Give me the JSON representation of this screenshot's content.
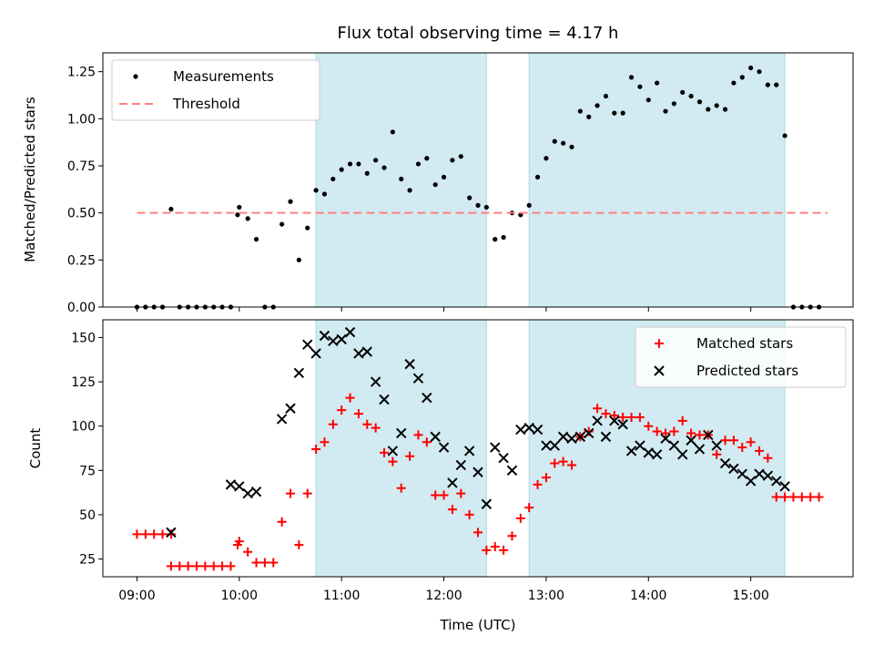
{
  "chart_data": [
    {
      "type": "scatter",
      "title": "Flux total observing time = 4.17 h",
      "xlabel": "",
      "ylabel": "Matched/Predicted stars",
      "xlim": [
        "08:40",
        "16:00"
      ],
      "ylim": [
        0,
        1.35
      ],
      "yticks": [
        "0.00",
        "0.25",
        "0.50",
        "0.75",
        "1.00",
        "1.25"
      ],
      "shaded_intervals": [
        [
          "10:45",
          "12:25"
        ],
        [
          "12:50",
          "15:20"
        ]
      ],
      "shade_color": "#add8e6",
      "legend": {
        "placement": "top-left",
        "entries": [
          "Measurements",
          "Threshold"
        ]
      },
      "series": [
        {
          "name": "Measurements",
          "marker": "dot",
          "color": "#000000",
          "x": [
            "09:00",
            "09:05",
            "09:10",
            "09:15",
            "09:20",
            "09:25",
            "09:30",
            "09:35",
            "09:40",
            "09:45",
            "09:50",
            "09:55",
            "09:59",
            "10:00",
            "10:05",
            "10:10",
            "10:15",
            "10:20",
            "10:25",
            "10:30",
            "10:35",
            "10:40",
            "10:45",
            "10:50",
            "10:55",
            "11:00",
            "11:05",
            "11:10",
            "11:15",
            "11:20",
            "11:25",
            "11:30",
            "11:35",
            "11:40",
            "11:45",
            "11:50",
            "11:55",
            "12:00",
            "12:05",
            "12:10",
            "12:15",
            "12:20",
            "12:25",
            "12:30",
            "12:35",
            "12:40",
            "12:45",
            "12:50",
            "12:55",
            "13:00",
            "13:05",
            "13:10",
            "13:15",
            "13:20",
            "13:25",
            "13:30",
            "13:35",
            "13:40",
            "13:45",
            "13:50",
            "13:55",
            "14:00",
            "14:05",
            "14:10",
            "14:15",
            "14:20",
            "14:25",
            "14:30",
            "14:35",
            "14:40",
            "14:45",
            "14:50",
            "14:55",
            "15:00",
            "15:05",
            "15:10",
            "15:15",
            "15:20",
            "15:25",
            "15:30",
            "15:35",
            "15:40"
          ],
          "y": [
            0,
            0,
            0,
            0,
            0.52,
            0,
            0,
            0,
            0,
            0,
            0,
            0,
            0.49,
            0.53,
            0.47,
            0.36,
            0,
            0,
            0.44,
            0.56,
            0.25,
            0.42,
            0.62,
            0.6,
            0.68,
            0.73,
            0.76,
            0.76,
            0.71,
            0.78,
            0.74,
            0.93,
            0.68,
            0.62,
            0.76,
            0.79,
            0.65,
            0.69,
            0.78,
            0.8,
            0.58,
            0.54,
            0.53,
            0.36,
            0.37,
            0.5,
            0.49,
            0.54,
            0.69,
            0.79,
            0.88,
            0.87,
            0.85,
            1.04,
            1.01,
            1.07,
            1.12,
            1.03,
            1.03,
            1.22,
            1.17,
            1.1,
            1.19,
            1.04,
            1.08,
            1.14,
            1.12,
            1.09,
            1.05,
            1.07,
            1.05,
            1.19,
            1.22,
            1.27,
            1.25,
            1.18,
            1.18,
            0.91,
            0,
            0,
            0,
            0
          ]
        },
        {
          "name": "Threshold",
          "style": "dashed",
          "color": "#ff8080",
          "x": [
            "09:00",
            "15:45"
          ],
          "y": [
            0.5,
            0.5
          ]
        }
      ]
    },
    {
      "type": "scatter",
      "title": "",
      "xlabel": "Time (UTC)",
      "ylabel": "Count",
      "xlim": [
        "08:40",
        "16:00"
      ],
      "ylim": [
        15,
        160
      ],
      "xticks": [
        "09:00",
        "10:00",
        "11:00",
        "12:00",
        "13:00",
        "14:00",
        "15:00"
      ],
      "yticks": [
        "25",
        "50",
        "75",
        "100",
        "125",
        "150"
      ],
      "shaded_intervals": [
        [
          "10:45",
          "12:25"
        ],
        [
          "12:50",
          "15:20"
        ]
      ],
      "shade_color": "#add8e6",
      "legend": {
        "placement": "top-right",
        "entries": [
          "Matched stars",
          "Predicted stars"
        ]
      },
      "series": [
        {
          "name": "Matched stars",
          "marker": "plus",
          "color": "#ff0000",
          "x": [
            "09:00",
            "09:05",
            "09:10",
            "09:15",
            "09:20",
            "09:20",
            "09:25",
            "09:30",
            "09:35",
            "09:40",
            "09:45",
            "09:50",
            "09:55",
            "09:59",
            "10:00",
            "10:05",
            "10:10",
            "10:15",
            "10:20",
            "10:25",
            "10:30",
            "10:35",
            "10:40",
            "10:45",
            "10:50",
            "10:55",
            "11:00",
            "11:05",
            "11:10",
            "11:15",
            "11:20",
            "11:25",
            "11:30",
            "11:35",
            "11:40",
            "11:45",
            "11:50",
            "11:55",
            "12:00",
            "12:05",
            "12:10",
            "12:15",
            "12:20",
            "12:25",
            "12:30",
            "12:35",
            "12:40",
            "12:45",
            "12:50",
            "12:55",
            "13:00",
            "13:05",
            "13:10",
            "13:15",
            "13:20",
            "13:25",
            "13:30",
            "13:35",
            "13:40",
            "13:45",
            "13:50",
            "13:55",
            "14:00",
            "14:05",
            "14:10",
            "14:15",
            "14:20",
            "14:25",
            "14:30",
            "14:35",
            "14:40",
            "14:45",
            "14:50",
            "14:55",
            "15:00",
            "15:05",
            "15:10",
            "15:15",
            "15:20",
            "15:25",
            "15:30",
            "15:35",
            "15:40"
          ],
          "y": [
            39,
            39,
            39,
            39,
            39,
            21,
            21,
            21,
            21,
            21,
            21,
            21,
            21,
            33,
            35,
            29,
            23,
            23,
            23,
            46,
            62,
            33,
            62,
            87,
            91,
            101,
            109,
            116,
            107,
            101,
            99,
            85,
            80,
            65,
            83,
            95,
            91,
            61,
            61,
            53,
            62,
            50,
            40,
            30,
            32,
            30,
            38,
            48,
            54,
            67,
            71,
            79,
            80,
            78,
            94,
            97,
            110,
            107,
            106,
            105,
            105,
            105,
            100,
            97,
            96,
            97,
            103,
            96,
            95,
            95,
            84,
            92,
            92,
            88,
            91,
            86,
            82,
            60,
            60,
            60,
            60,
            60,
            60
          ]
        },
        {
          "name": "Predicted stars",
          "marker": "x",
          "color": "#000000",
          "x": [
            "09:20",
            "09:55",
            "10:00",
            "10:05",
            "10:10",
            "10:25",
            "10:30",
            "10:35",
            "10:40",
            "10:45",
            "10:50",
            "10:55",
            "11:00",
            "11:05",
            "11:10",
            "11:15",
            "11:20",
            "11:25",
            "11:30",
            "11:35",
            "11:40",
            "11:45",
            "11:50",
            "11:55",
            "12:00",
            "12:05",
            "12:10",
            "12:15",
            "12:20",
            "12:25",
            "12:30",
            "12:35",
            "12:40",
            "12:45",
            "12:50",
            "12:55",
            "13:00",
            "13:05",
            "13:10",
            "13:15",
            "13:20",
            "13:25",
            "13:30",
            "13:35",
            "13:40",
            "13:45",
            "13:50",
            "13:55",
            "14:00",
            "14:05",
            "14:10",
            "14:15",
            "14:20",
            "14:25",
            "14:30",
            "14:35",
            "14:40",
            "14:45",
            "14:50",
            "14:55",
            "15:00",
            "15:05",
            "15:10",
            "15:15",
            "15:20"
          ],
          "y": [
            40,
            67,
            66,
            62,
            63,
            104,
            110,
            130,
            146,
            141,
            151,
            148,
            149,
            153,
            141,
            142,
            125,
            115,
            86,
            96,
            135,
            127,
            116,
            94,
            88,
            68,
            78,
            86,
            74,
            56,
            88,
            82,
            75,
            98,
            99,
            98,
            89,
            89,
            94,
            93,
            94,
            96,
            103,
            94,
            103,
            101,
            86,
            89,
            85,
            84,
            93,
            89,
            84,
            92,
            87,
            95,
            89,
            79,
            76,
            73,
            69,
            73,
            72,
            69,
            66
          ]
        }
      ]
    }
  ]
}
